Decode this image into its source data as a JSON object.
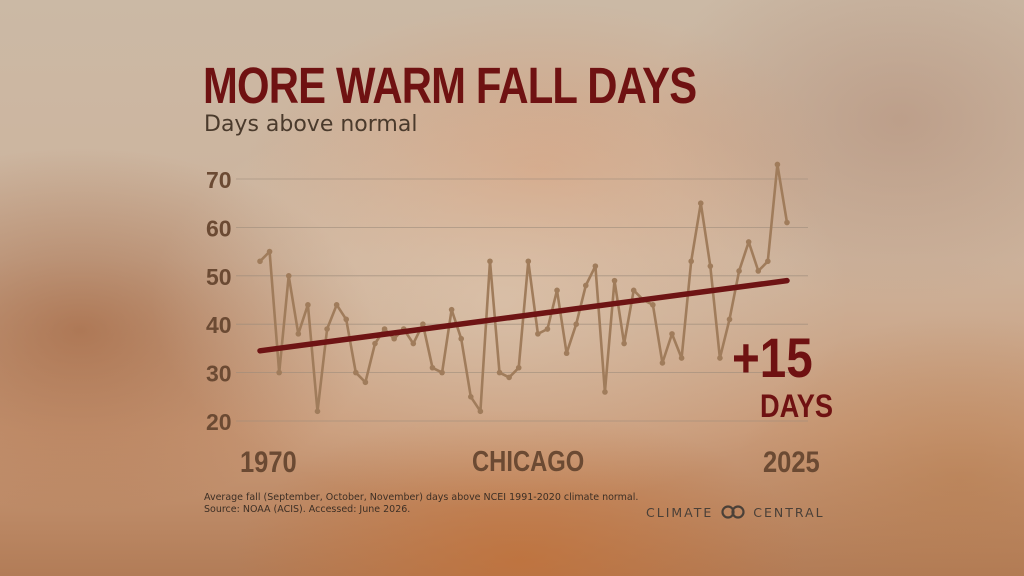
{
  "heading": {
    "title": "MORE WARM FALL DAYS",
    "subtitle": "Days above normal"
  },
  "chart_data": {
    "type": "line",
    "x": [
      1970,
      1971,
      1972,
      1973,
      1974,
      1975,
      1976,
      1977,
      1978,
      1979,
      1980,
      1981,
      1982,
      1983,
      1984,
      1985,
      1986,
      1987,
      1988,
      1989,
      1990,
      1991,
      1992,
      1993,
      1994,
      1995,
      1996,
      1997,
      1998,
      1999,
      2000,
      2001,
      2002,
      2003,
      2004,
      2005,
      2006,
      2007,
      2008,
      2009,
      2010,
      2011,
      2012,
      2013,
      2014,
      2015,
      2016,
      2017,
      2018,
      2019,
      2020,
      2021,
      2022,
      2023,
      2024,
      2025
    ],
    "values": [
      53,
      55,
      30,
      50,
      38,
      44,
      22,
      39,
      44,
      41,
      30,
      28,
      36,
      39,
      37,
      39,
      36,
      40,
      31,
      30,
      43,
      37,
      25,
      22,
      53,
      30,
      29,
      31,
      53,
      38,
      39,
      47,
      34,
      40,
      48,
      52,
      26,
      49,
      36,
      47,
      45,
      44,
      32,
      38,
      33,
      53,
      65,
      52,
      33,
      41,
      51,
      57,
      51,
      53,
      73,
      61
    ],
    "trend": {
      "start": 34.5,
      "end": 49
    },
    "ylim": [
      20,
      73
    ],
    "yticks": [
      20,
      30,
      40,
      50,
      60,
      70
    ],
    "x_labels": {
      "start": "1970",
      "end": "2025"
    },
    "location": "CHICAGO",
    "change": {
      "value": "+15",
      "unit": "DAYS"
    },
    "grid": true,
    "colors": {
      "line": "#a07c5b",
      "trend": "#6e1414",
      "grid": "#9c8b7b",
      "tick": "#6b4a33"
    }
  },
  "footnotes": {
    "line1": "Average fall (September, October, November) days above NCEI 1991-2020 climate normal.",
    "line2": "Source: NOAA (ACIS). Accessed: June 2026."
  },
  "logo": {
    "text_left": "CLIMATE",
    "text_right": "CENTRAL",
    "icon": "climate-central-logo-icon"
  }
}
